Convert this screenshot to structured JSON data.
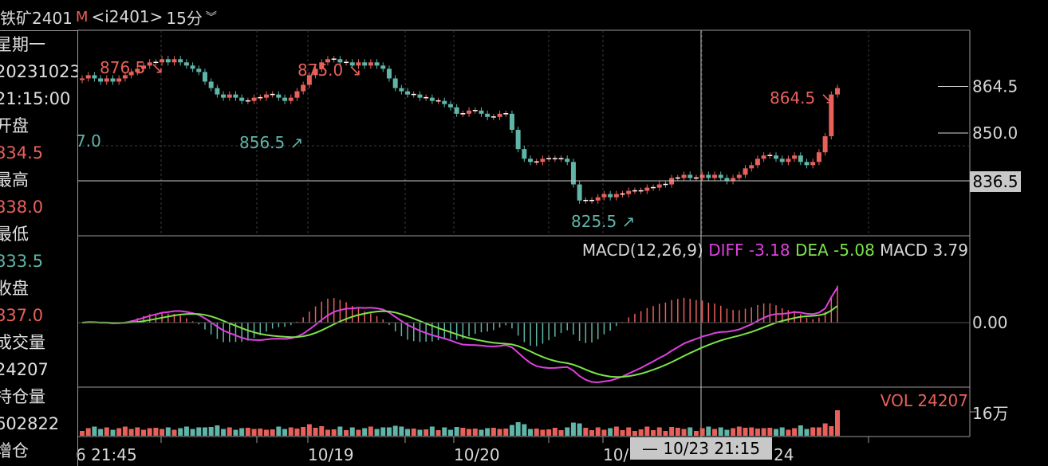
{
  "header": {
    "title": "铁矿2401",
    "badge": "M",
    "code": "<i2401>",
    "period": "15分",
    "expand_icon": "double-chevron-down-icon"
  },
  "info_panel": [
    {
      "text": "星期一",
      "cls": "lbl"
    },
    {
      "text": "20231023",
      "cls": "lbl"
    },
    {
      "text": "21:15:00",
      "cls": "lbl"
    },
    {
      "text": "开盘",
      "cls": "lbl"
    },
    {
      "text": "834.5",
      "cls": "red"
    },
    {
      "text": "最高",
      "cls": "lbl"
    },
    {
      "text": "838.0",
      "cls": "red"
    },
    {
      "text": "最低",
      "cls": "lbl"
    },
    {
      "text": "833.5",
      "cls": "grn"
    },
    {
      "text": "收盘",
      "cls": "lbl"
    },
    {
      "text": "837.0",
      "cls": "red"
    },
    {
      "text": "成交量",
      "cls": "lbl"
    },
    {
      "text": "24207",
      "cls": "lbl"
    },
    {
      "text": "持仓量",
      "cls": "lbl"
    },
    {
      "text": "602822",
      "cls": "lbl"
    },
    {
      "text": "增仓",
      "cls": "lbl"
    }
  ],
  "chart_data": {
    "type": "candlestick",
    "price_axis": {
      "ticks": [
        864.5,
        850.0
      ],
      "current": 836.5,
      "range": [
        819,
        881
      ]
    },
    "annotations": [
      {
        "text": "876.5",
        "kind": "high",
        "color": "#e8605a"
      },
      {
        "text": "875.0",
        "kind": "high",
        "color": "#e8605a"
      },
      {
        "text": "864.5",
        "kind": "high",
        "color": "#e8605a"
      },
      {
        "text": "856.5",
        "kind": "low",
        "color": "#5fb5a8"
      },
      {
        "text": "825.5",
        "kind": "low",
        "color": "#5fb5a8"
      },
      {
        "text": "7.0",
        "kind": "clipped",
        "color": "#5fb5a8"
      }
    ],
    "closes": [
      867,
      868,
      867,
      866,
      867,
      866,
      867,
      868,
      869,
      870,
      871,
      872,
      872,
      873,
      872,
      873,
      872,
      871,
      870,
      869,
      866,
      864,
      862,
      861,
      862,
      861,
      860,
      860,
      861,
      861,
      862,
      862,
      861,
      860,
      861,
      863,
      865,
      868,
      870,
      872,
      873,
      873,
      872,
      872,
      871,
      872,
      871,
      872,
      871,
      870,
      867,
      864,
      863,
      862,
      862,
      861,
      861,
      860,
      860,
      859,
      858,
      856,
      856,
      857,
      857,
      856,
      855,
      855,
      856,
      856,
      851,
      845,
      842,
      841,
      841,
      842,
      842,
      842,
      842,
      841,
      834,
      829,
      829,
      829,
      830,
      831,
      830,
      831,
      831,
      832,
      832,
      832,
      833,
      833,
      834,
      834,
      836,
      836,
      837,
      836,
      836,
      837,
      836,
      837,
      836,
      835,
      836,
      837,
      839,
      840,
      842,
      843,
      843,
      842,
      841,
      842,
      843,
      841,
      840,
      841,
      844,
      849,
      862,
      864
    ],
    "macd": {
      "title": "MACD(12,26,9)",
      "diff_label": "DIFF",
      "diff": "-3.18",
      "dea_label": "DEA",
      "dea": "-5.08",
      "macd_label": "MACD",
      "macd": "3.79",
      "zero_label": "0.00"
    },
    "volume": {
      "title": "VOL",
      "value": "24207",
      "axis_label": "16万"
    },
    "x_labels": [
      "6 21:45",
      "10/19",
      "10/20",
      "10/",
      "24"
    ],
    "crosshair_label": "— 10/23 21:15",
    "colors": {
      "up": "#e8605a",
      "down": "#5fb5a8",
      "diff": "#e040e0",
      "dea": "#7de34a",
      "grid": "#3a3a3a"
    }
  }
}
